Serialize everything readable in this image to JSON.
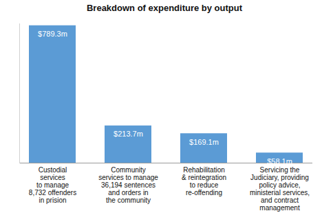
{
  "chart_data": {
    "type": "bar",
    "title": "Breakdown of expenditure by output",
    "categories": [
      "Custodial\nservices\nto manage\n8,732 offenders\nin prision",
      "Community\nservices to manage\n36,194 sentences\nand orders in\nthe community",
      "Rehabilitation\n& reintegration\nto reduce\nre-offending",
      "Servicing the\nJudiciary, providing\npolicy advice,\nministerial services,\nand contract\nmanagement"
    ],
    "values": [
      789.3,
      213.7,
      169.1,
      58.1
    ],
    "value_labels": [
      "$789.3m",
      "$213.7m",
      "$169.1m",
      "$58.1m"
    ],
    "color": "#5b9bd5",
    "ylim": [
      0,
      800
    ],
    "data_labels": true,
    "tick_labels": "x",
    "grid": false
  }
}
